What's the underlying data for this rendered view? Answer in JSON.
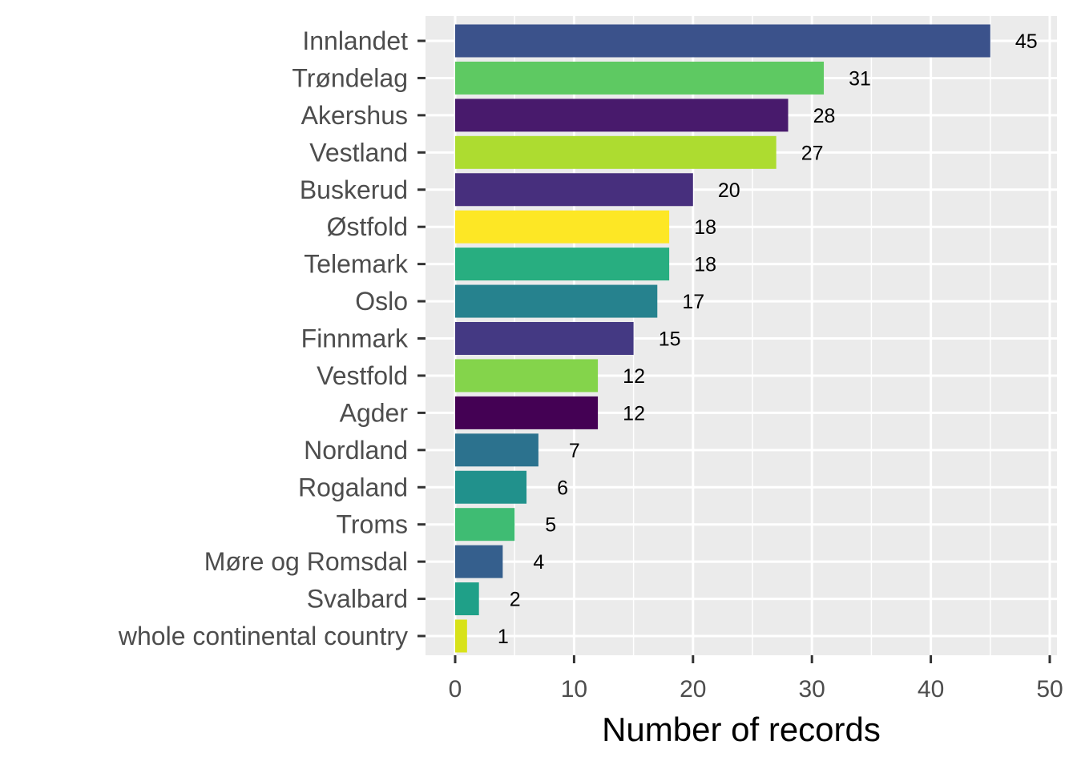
{
  "chart_data": {
    "type": "bar",
    "orientation": "horizontal",
    "title": "",
    "xlabel": "Number of records",
    "ylabel": "",
    "xlim": [
      0,
      50
    ],
    "xticks": [
      0,
      10,
      20,
      30,
      40,
      50
    ],
    "grid": true,
    "legend": "none",
    "categories": [
      "Innlandet",
      "Trøndelag",
      "Akershus",
      "Vestland",
      "Buskerud",
      "Østfold",
      "Telemark",
      "Oslo",
      "Finnmark",
      "Vestfold",
      "Agder",
      "Nordland",
      "Rogaland",
      "Troms",
      "Møre og Romsdal",
      "Svalbard",
      "whole continental country"
    ],
    "values": [
      45,
      31,
      28,
      27,
      20,
      18,
      18,
      17,
      15,
      12,
      12,
      7,
      6,
      5,
      4,
      2,
      1
    ],
    "colors": [
      "#3b528b",
      "#5ec962",
      "#481a6c",
      "#addc30",
      "#472f7d",
      "#fde725",
      "#28ae80",
      "#26828e",
      "#443983",
      "#84d44b",
      "#440154",
      "#2c728e",
      "#21918c",
      "#3fbc73",
      "#355f8d",
      "#1fa088",
      "#d8e219"
    ]
  }
}
